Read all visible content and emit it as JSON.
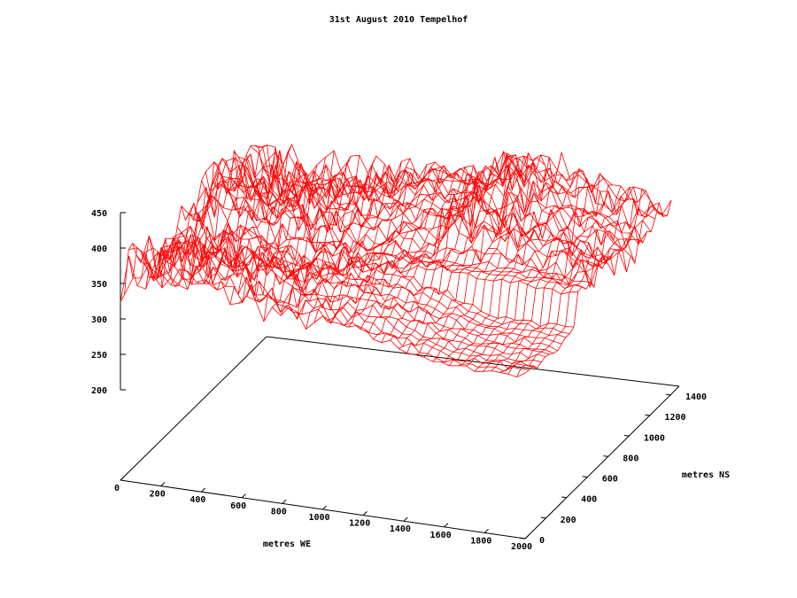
{
  "chart_data": {
    "type": "surface",
    "title": "31st August 2010 Tempelhof",
    "xlabel": "metres WE",
    "ylabel": "metres NS",
    "xlim": [
      0,
      2000
    ],
    "ylim": [
      0,
      1400
    ],
    "zlim": [
      200,
      450
    ],
    "x_ticks": [
      "0",
      "200",
      "400",
      "600",
      "800",
      "1000",
      "1200",
      "1400",
      "1600",
      "1800",
      "2000"
    ],
    "y_ticks": [
      "0",
      "200",
      "400",
      "600",
      "800",
      "1000",
      "1200",
      "1400"
    ],
    "z_ticks": [
      "200",
      "250",
      "300",
      "350",
      "400",
      "450"
    ],
    "grid": false,
    "legend": "none",
    "colors": {
      "surface": "#ff0000",
      "axes": "#000000"
    }
  }
}
